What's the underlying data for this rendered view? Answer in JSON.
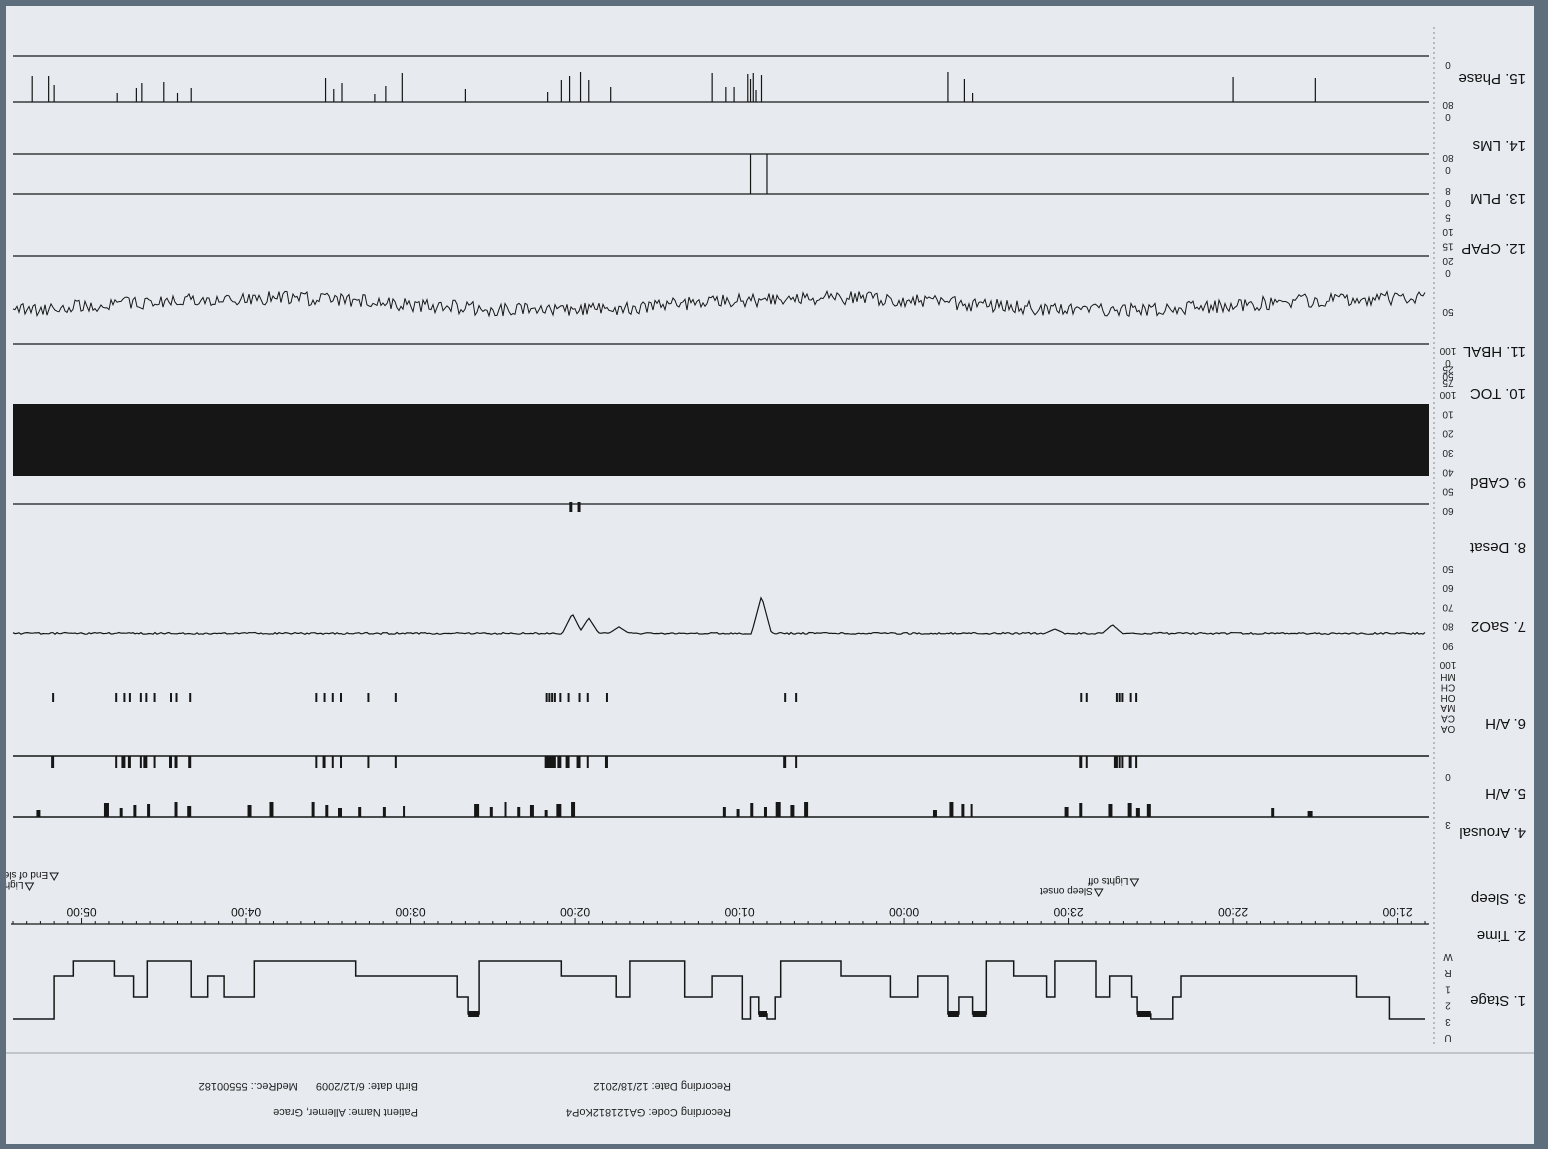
{
  "header": {
    "recording_code_label": "Recording Code:",
    "recording_code": "GA121812KoP4",
    "recording_date_label": "Recording Date:",
    "recording_date": "12/18/2012",
    "patient_name_label": "Patient Name:",
    "patient_name": "Allemer, Grace",
    "birth_date_label": "Birth date:",
    "birth_date": "6/12/2009",
    "medrec_label": "MedRec.:",
    "medrec": "55500182"
  },
  "colors": {
    "paper": "#e7ebef",
    "ink": "#161616",
    "background": "#5f6e7d"
  },
  "display": {
    "orientation": "rotated-180"
  },
  "chart_data": {
    "type": "line",
    "title": "",
    "time_axis": {
      "ticks": [
        "21:00",
        "22:00",
        "23:00",
        "00:00",
        "01:00",
        "02:00",
        "03:00",
        "04:00",
        "05:00"
      ],
      "range": [
        "20:50",
        "05:25"
      ]
    },
    "events": [
      {
        "label": "Lights off",
        "time": "22:36"
      },
      {
        "label": "Sleep onset",
        "time": "22:49"
      },
      {
        "label": "End of sleep",
        "time": "05:10"
      },
      {
        "label": "Lights on",
        "time": "05:19"
      }
    ],
    "channels": [
      {
        "label": "1. Stage",
        "scale": [
          "U",
          "3",
          "2",
          "1",
          "R",
          "W"
        ]
      },
      {
        "label": "2. Time"
      },
      {
        "label": "3. Sleep"
      },
      {
        "label": "4. Arousal",
        "scale": [
          "3",
          "0"
        ]
      },
      {
        "label": "5. A/H"
      },
      {
        "label": "6. A/H",
        "scale": [
          "OA",
          "CA",
          "MA",
          "OH",
          "CH",
          "MH"
        ]
      },
      {
        "label": "7. SaO2",
        "scale": [
          "100",
          "90",
          "80",
          "70",
          "60",
          "50"
        ]
      },
      {
        "label": "8. Desat"
      },
      {
        "label": "9. CABd",
        "scale": [
          "60",
          "50",
          "40",
          "30",
          "20",
          "10",
          "100"
        ]
      },
      {
        "label": "10. TOC",
        "scale": [
          "75",
          "50",
          "25",
          "0"
        ]
      },
      {
        "label": "11. HBAL",
        "scale": [
          "100",
          "50",
          "0"
        ]
      },
      {
        "label": "12. CPAP",
        "scale": [
          "20",
          "15",
          "10",
          "5",
          "0"
        ]
      },
      {
        "label": "13. PLM",
        "scale": [
          "8",
          "0"
        ]
      },
      {
        "label": "14. LMs",
        "scale": [
          "80",
          "0"
        ]
      },
      {
        "label": "15. Phase",
        "scale": [
          "80",
          "0"
        ]
      }
    ],
    "hypnogram": [
      [
        "20:50",
        "W"
      ],
      [
        "21:03",
        "1"
      ],
      [
        "21:15",
        "2"
      ],
      [
        "22:19",
        "1"
      ],
      [
        "22:22",
        "W"
      ],
      [
        "22:30",
        "R"
      ],
      [
        "22:35",
        "1"
      ],
      [
        "22:37",
        "2"
      ],
      [
        "22:45",
        "1"
      ],
      [
        "22:50",
        "3"
      ],
      [
        "23:05",
        "1"
      ],
      [
        "23:08",
        "2"
      ],
      [
        "23:20",
        "3"
      ],
      [
        "23:30",
        "R"
      ],
      [
        "23:35",
        "1"
      ],
      [
        "23:40",
        "R"
      ],
      [
        "23:44",
        "2"
      ],
      [
        "23:55",
        "1"
      ],
      [
        "00:05",
        "2"
      ],
      [
        "00:23",
        "3"
      ],
      [
        "00:45",
        "1"
      ],
      [
        "00:47",
        "W"
      ],
      [
        "00:50",
        "R"
      ],
      [
        "00:53",
        "1"
      ],
      [
        "00:56",
        "W"
      ],
      [
        "00:59",
        "2"
      ],
      [
        "01:10",
        "1"
      ],
      [
        "01:20",
        "3"
      ],
      [
        "01:40",
        "1"
      ],
      [
        "01:45",
        "2"
      ],
      [
        "02:05",
        "3"
      ],
      [
        "02:35",
        "R"
      ],
      [
        "02:39",
        "1"
      ],
      [
        "02:43",
        "2"
      ],
      [
        "03:20",
        "3"
      ],
      [
        "03:57",
        "1"
      ],
      [
        "04:08",
        "2"
      ],
      [
        "04:14",
        "1"
      ],
      [
        "04:20",
        "3"
      ],
      [
        "04:36",
        "1"
      ],
      [
        "04:41",
        "2"
      ],
      [
        "04:48",
        "3"
      ],
      [
        "05:03",
        "2"
      ],
      [
        "05:10",
        "W"
      ],
      [
        "05:25",
        "W"
      ]
    ],
    "arousals": [
      "21:31",
      "21:45",
      "22:30",
      "22:34",
      "22:37",
      "22:44",
      "22:55",
      "23:00",
      "23:35",
      "23:38",
      "23:42",
      "23:48",
      "00:35",
      "00:40",
      "00:45",
      "00:50",
      "00:55",
      "01:00",
      "01:05",
      "02:00",
      "02:05",
      "02:10",
      "02:15",
      "02:20",
      "02:25",
      "02:30",
      "02:35",
      "03:02",
      "03:09",
      "03:18",
      "03:25",
      "03:30",
      "03:35",
      "03:50",
      "03:58",
      "04:20",
      "04:25",
      "04:35",
      "04:40",
      "04:45",
      "04:50",
      "05:15"
    ],
    "resp_events": [
      "22:35",
      "22:37",
      "22:40",
      "22:41",
      "22:42",
      "22:53",
      "22:55",
      "00:39",
      "00:43",
      "01:48",
      "01:55",
      "01:58",
      "02:02",
      "02:05",
      "02:07",
      "02:08",
      "02:09",
      "02:10",
      "03:05",
      "03:15",
      "03:25",
      "03:28",
      "03:31",
      "03:34",
      "04:20",
      "04:25",
      "04:27",
      "04:33",
      "04:36",
      "04:38",
      "04:42",
      "04:44",
      "04:47",
      "05:10"
    ],
    "sao2": {
      "baseline": 97,
      "dips": [
        [
          "22:44",
          93
        ],
        [
          "23:05",
          95
        ],
        [
          "00:52",
          80
        ],
        [
          "01:44",
          94
        ],
        [
          "01:55",
          90
        ],
        [
          "02:01",
          88
        ]
      ]
    },
    "desat_events": [
      "01:58",
      "02:01"
    ],
    "cpap_level": {
      "baseline": 8,
      "min": 4,
      "max": 12
    },
    "plm_events": [
      "00:50",
      "00:56"
    ],
    "lms_events": [
      "21:30",
      "22:00",
      "23:35",
      "23:38",
      "23:44",
      "00:52",
      "00:54",
      "00:55",
      "00:56",
      "00:57",
      "01:02",
      "01:05",
      "01:10",
      "01:47",
      "01:55",
      "01:58",
      "02:02",
      "02:05",
      "02:10",
      "02:40",
      "03:03",
      "03:09",
      "03:13",
      "03:25",
      "03:28",
      "03:31",
      "04:20",
      "04:25",
      "04:30",
      "04:38",
      "04:40",
      "04:47",
      "05:10",
      "05:12",
      "05:18"
    ]
  }
}
